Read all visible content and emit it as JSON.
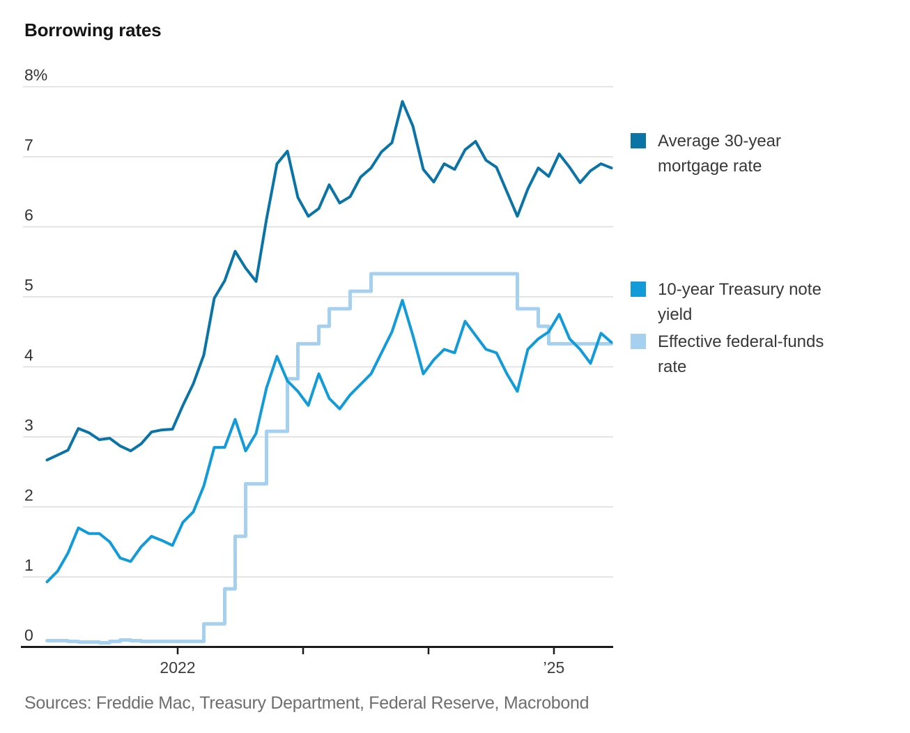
{
  "title": "Borrowing rates",
  "source_line": "Sources: Freddie Mac, Treasury Department, Federal Reserve, Macrobond",
  "colors": {
    "mortgage": "#0b74a6",
    "treasury": "#119bd9",
    "fedfunds": "#a6d0ef",
    "grid": "#dcdcdc",
    "axis": "#1a1a1a",
    "axis_text": "#333333",
    "muted_text": "#6e6e6e"
  },
  "legend": [
    {
      "key": "mortgage",
      "label": "Average 30-year\nmortgage rate"
    },
    {
      "key": "treasury",
      "label": "10-year Treasury note\nyield"
    },
    {
      "key": "fedfunds",
      "label": "Effective federal-funds\nrate"
    }
  ],
  "chart_data": {
    "type": "line",
    "title": "Borrowing rates",
    "x_unit": "month",
    "ylim": [
      0,
      8
    ],
    "grid": true,
    "legend_position": "right",
    "yticks": [
      {
        "value": 8,
        "label": "8%"
      },
      {
        "value": 7,
        "label": "7"
      },
      {
        "value": 6,
        "label": "6"
      },
      {
        "value": 5,
        "label": "5"
      },
      {
        "value": 4,
        "label": "4"
      },
      {
        "value": 3,
        "label": "3"
      },
      {
        "value": 2,
        "label": "2"
      },
      {
        "value": 1,
        "label": "1"
      },
      {
        "value": 0,
        "label": "0"
      }
    ],
    "xticks": [
      {
        "pos": 12.5,
        "label": "2022"
      },
      {
        "pos": 24.5,
        "label": ""
      },
      {
        "pos": 36.5,
        "label": ""
      },
      {
        "pos": 48.5,
        "label": "’25"
      }
    ],
    "x": [
      "Dec 2020",
      "Jan 2021",
      "Feb 2021",
      "Mar 2021",
      "Apr 2021",
      "May 2021",
      "Jun 2021",
      "Jul 2021",
      "Aug 2021",
      "Sep 2021",
      "Oct 2021",
      "Nov 2021",
      "Dec 2021",
      "Jan 2022",
      "Feb 2022",
      "Mar 2022",
      "Apr 2022",
      "May 2022",
      "Jun 2022",
      "Jul 2022",
      "Aug 2022",
      "Sep 2022",
      "Oct 2022",
      "Nov 2022",
      "Dec 2022",
      "Jan 2023",
      "Feb 2023",
      "Mar 2023",
      "Apr 2023",
      "May 2023",
      "Jun 2023",
      "Jul 2023",
      "Aug 2023",
      "Sep 2023",
      "Oct 2023",
      "Nov 2023",
      "Dec 2023",
      "Jan 2024",
      "Feb 2024",
      "Mar 2024",
      "Apr 2024",
      "May 2024",
      "Jun 2024",
      "Jul 2024",
      "Aug 2024",
      "Sep 2024",
      "Oct 2024",
      "Nov 2024",
      "Dec 2024",
      "Jan 2025",
      "Feb 2025",
      "Mar 2025",
      "Apr 2025",
      "May 2025",
      "Jun 2025"
    ],
    "series": [
      {
        "name": "Average 30-year mortgage rate",
        "key": "mortgage",
        "interpolation": "linear",
        "stroke_width": 4,
        "values": [
          2.67,
          2.74,
          2.81,
          3.12,
          3.06,
          2.96,
          2.98,
          2.87,
          2.8,
          2.9,
          3.07,
          3.1,
          3.11,
          3.45,
          3.76,
          4.17,
          4.98,
          5.23,
          5.65,
          5.41,
          5.22,
          6.11,
          6.9,
          7.08,
          6.42,
          6.15,
          6.26,
          6.6,
          6.34,
          6.43,
          6.71,
          6.84,
          7.07,
          7.2,
          7.79,
          7.44,
          6.82,
          6.64,
          6.9,
          6.82,
          7.1,
          7.22,
          6.95,
          6.85,
          6.5,
          6.15,
          6.54,
          6.84,
          6.72,
          7.04,
          6.85,
          6.63,
          6.8,
          6.9,
          6.84
        ]
      },
      {
        "name": "10-year Treasury note yield",
        "key": "treasury",
        "interpolation": "linear",
        "stroke_width": 4,
        "values": [
          0.93,
          1.08,
          1.34,
          1.7,
          1.62,
          1.62,
          1.5,
          1.27,
          1.22,
          1.43,
          1.58,
          1.52,
          1.45,
          1.78,
          1.93,
          2.3,
          2.85,
          2.85,
          3.25,
          2.8,
          3.05,
          3.7,
          4.15,
          3.8,
          3.65,
          3.45,
          3.9,
          3.55,
          3.4,
          3.6,
          3.75,
          3.9,
          4.2,
          4.5,
          4.95,
          4.45,
          3.9,
          4.1,
          4.25,
          4.2,
          4.65,
          4.45,
          4.25,
          4.2,
          3.9,
          3.65,
          4.25,
          4.4,
          4.5,
          4.75,
          4.4,
          4.25,
          4.05,
          4.48,
          4.35
        ]
      },
      {
        "name": "Effective federal-funds rate",
        "key": "fedfunds",
        "interpolation": "step-after",
        "stroke_width": 5,
        "values": [
          0.09,
          0.09,
          0.08,
          0.07,
          0.07,
          0.06,
          0.08,
          0.1,
          0.09,
          0.08,
          0.08,
          0.08,
          0.08,
          0.08,
          0.08,
          0.33,
          0.33,
          0.83,
          1.58,
          2.33,
          2.33,
          3.08,
          3.08,
          3.83,
          4.33,
          4.33,
          4.58,
          4.83,
          4.83,
          5.08,
          5.08,
          5.33,
          5.33,
          5.33,
          5.33,
          5.33,
          5.33,
          5.33,
          5.33,
          5.33,
          5.33,
          5.33,
          5.33,
          5.33,
          5.33,
          4.83,
          4.83,
          4.58,
          4.33,
          4.33,
          4.33,
          4.33,
          4.33,
          4.33,
          4.33
        ]
      }
    ]
  }
}
